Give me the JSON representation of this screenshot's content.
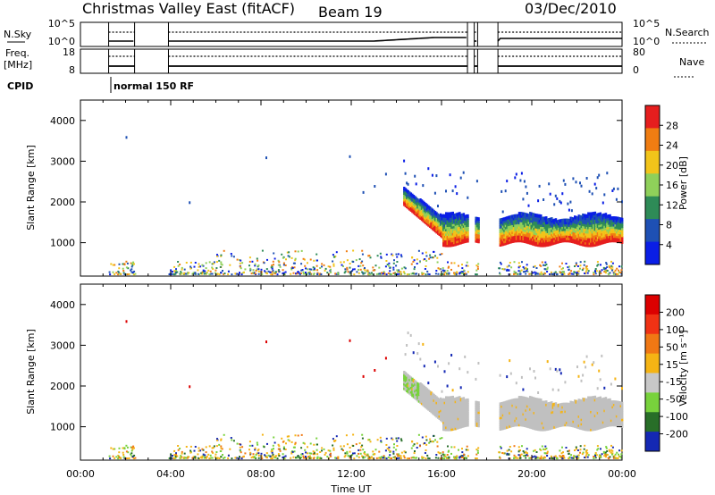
{
  "header": {
    "station": "Christmas Valley East (fitACF)",
    "beam": "Beam 19",
    "date": "03/Dec/2010"
  },
  "top_panels": {
    "nsky_label": "N.Sky",
    "nsky_ticks": [
      "10^5",
      "10^0"
    ],
    "nsearch_label": "N.Search",
    "nsearch_ticks": [
      "10^5",
      "10^0"
    ],
    "freq_label": "Freq.",
    "freq_unit": "[MHz]",
    "freq_ticks": [
      "18",
      "8"
    ],
    "nave_label": "Nave",
    "nave_ticks": [
      "80",
      "0"
    ],
    "cpid_label": "CPID",
    "cpid_text": "normal 150 RF"
  },
  "chart_data": [
    {
      "type": "heatmap",
      "name": "power",
      "ylabel": "Slant Range [km]",
      "y_ticks": [
        1000,
        2000,
        3000,
        4000
      ],
      "ylim": [
        180,
        4500
      ],
      "xlim": [
        0,
        24
      ],
      "x_ticks": [
        "00:00",
        "04:00",
        "08:00",
        "12:00",
        "16:00",
        "20:00",
        "00:00"
      ],
      "colorbar_label": "Power [dB]",
      "colorbar_ticks": [
        "4",
        "8",
        "12",
        "16",
        "20",
        "24",
        "28"
      ],
      "colors": [
        "#0a1ee6",
        "#1e50b4",
        "#2e8b57",
        "#8fd05a",
        "#f2c41a",
        "#f07d12",
        "#e61e1e"
      ]
    },
    {
      "type": "heatmap",
      "name": "velocity",
      "ylabel": "Slant Range [km]",
      "y_ticks": [
        1000,
        2000,
        3000,
        4000
      ],
      "ylim": [
        180,
        4500
      ],
      "xlim": [
        0,
        24
      ],
      "x_ticks": [
        "00:00",
        "04:00",
        "08:00",
        "12:00",
        "16:00",
        "20:00",
        "00:00"
      ],
      "xlabel": "Time UT",
      "colorbar_label": "Velocity [m s⁻¹]",
      "colorbar_ticks": [
        "200",
        "100",
        "50",
        "15",
        "-15",
        "-50",
        "-100",
        "-200"
      ],
      "colors": [
        "#1428b4",
        "#286e28",
        "#78d23c",
        "#c8c8c8",
        "#f5b414",
        "#f07814",
        "#f03214",
        "#dc0000"
      ]
    }
  ],
  "colors": {
    "gs_grey": "#c0c0c0",
    "axis": "#000000"
  }
}
